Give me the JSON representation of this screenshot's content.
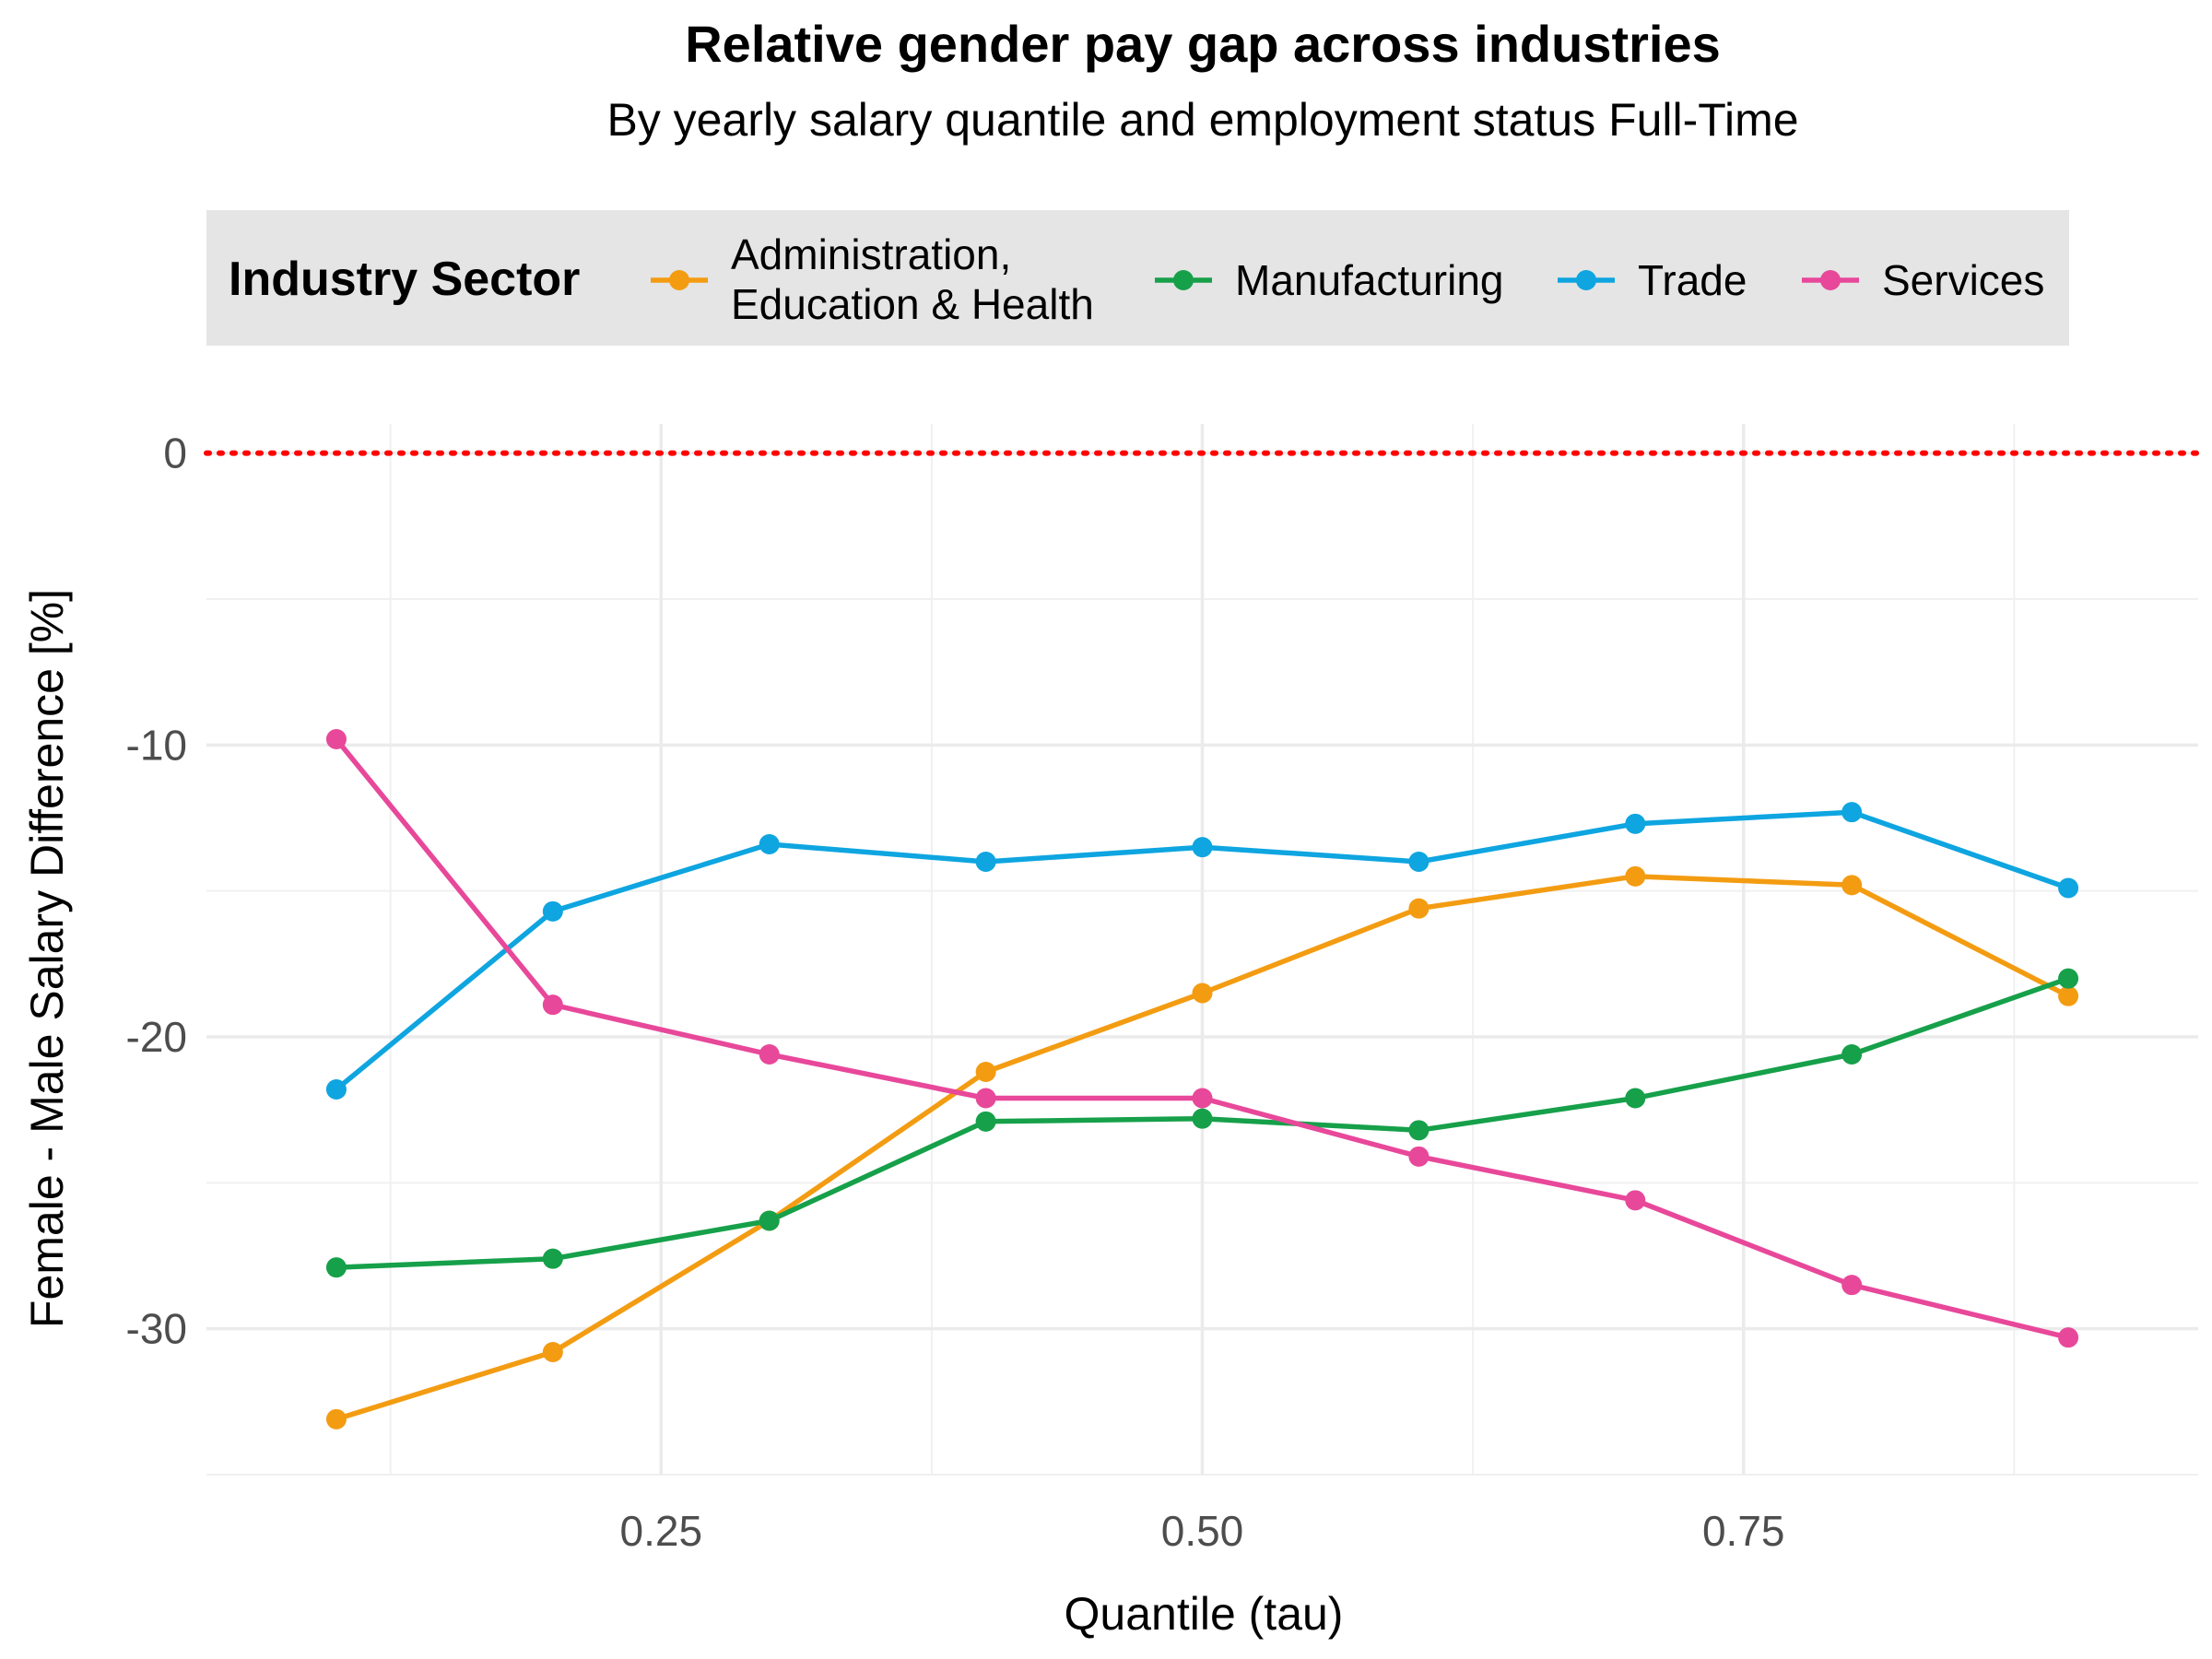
{
  "chart_data": {
    "type": "line",
    "title": "Relative gender pay gap across industries",
    "subtitle": "By yearly salary quantile and employment status Full-Time",
    "xlabel": "Quantile (tau)",
    "ylabel": "Female - Male Salary Difference [%]",
    "xlim": [
      0.04,
      0.96
    ],
    "ylim": [
      -35,
      1
    ],
    "x_ticks": [
      0.25,
      0.5,
      0.75
    ],
    "x_tick_labels": [
      "0.25",
      "0.50",
      "0.75"
    ],
    "y_ticks": [
      0,
      -10,
      -20,
      -30
    ],
    "y_tick_labels": [
      "0",
      "-10",
      "-20",
      "-30"
    ],
    "grid": true,
    "legend": {
      "title": "Industry Sector",
      "position": "top"
    },
    "reference_line": {
      "y": 0,
      "style": "dotted",
      "color": "#ff0000"
    },
    "x": [
      0.1,
      0.2,
      0.3,
      0.4,
      0.5,
      0.6,
      0.7,
      0.8,
      0.9
    ],
    "series": [
      {
        "name": "Administration, Education & Health",
        "name_lines": [
          "Administration,",
          "Education & Health"
        ],
        "color": "#f39c12",
        "values": [
          -33.1,
          -30.8,
          -26.3,
          -21.2,
          -18.5,
          -15.6,
          -14.5,
          -14.8,
          -18.6
        ]
      },
      {
        "name": "Manufacturing",
        "name_lines": [
          "Manufacturing"
        ],
        "color": "#16a04a",
        "values": [
          -27.9,
          -27.6,
          -26.3,
          -22.9,
          -22.8,
          -23.2,
          -22.1,
          -20.6,
          -18.0
        ]
      },
      {
        "name": "Trade",
        "name_lines": [
          "Trade"
        ],
        "color": "#0ea5e0",
        "values": [
          -21.8,
          -15.7,
          -13.4,
          -14.0,
          -13.5,
          -14.0,
          -12.7,
          -12.3,
          -14.9
        ]
      },
      {
        "name": "Services",
        "name_lines": [
          "Services"
        ],
        "color": "#e8489a",
        "values": [
          -9.8,
          -18.9,
          -20.6,
          -22.1,
          -22.1,
          -24.1,
          -25.6,
          -28.5,
          -30.3
        ]
      }
    ]
  }
}
